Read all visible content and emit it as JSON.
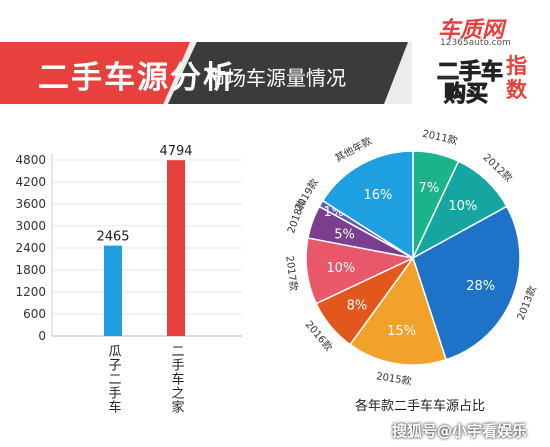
{
  "header": {
    "title": "二手车源分析",
    "subtitle": "市场车源量情况",
    "logo_top": "车质网",
    "logo_url": "12365auto.com",
    "logo_line1": "二手车",
    "logo_line2": "购买",
    "logo_side": "指数"
  },
  "watermark": "搜狐号@小宇看娱乐",
  "colors": {
    "banner_red": "#e8403c",
    "banner_dark": "#3b3b3b",
    "bar_blue": "#1ea0e0",
    "bar_red": "#e8403c"
  },
  "chart_data": [
    {
      "type": "bar",
      "categories": [
        "瓜子二手车",
        "二手车之家"
      ],
      "values": [
        2465,
        4794
      ],
      "data_labels": [
        "2465",
        "4794"
      ],
      "colors": [
        "#1ea0e0",
        "#e8403c"
      ],
      "ylim": [
        0,
        4800
      ],
      "yticks": [
        "0",
        "600",
        "1200",
        "1800",
        "2400",
        "3000",
        "3600",
        "4200",
        "4800"
      ],
      "grid": true,
      "legend": "none"
    },
    {
      "type": "pie",
      "title": "各年款二手车车源占比",
      "slices": [
        {
          "label": "2011款",
          "value": 7,
          "text": "7%",
          "color": "#1ab38a"
        },
        {
          "label": "2012款",
          "value": 10,
          "text": "10%",
          "color": "#16a6a1"
        },
        {
          "label": "2013款",
          "value": 28,
          "text": "28%",
          "color": "#1e73c8"
        },
        {
          "label": "2015款",
          "value": 15,
          "text": "15%",
          "color": "#f2a12a"
        },
        {
          "label": "2016款",
          "value": 8,
          "text": "8%",
          "color": "#e2571c"
        },
        {
          "label": "2017款",
          "value": 10,
          "text": "10%",
          "color": "#e8576a"
        },
        {
          "label": "2018款",
          "value": 5,
          "text": "5%",
          "color": "#7a3e8e"
        },
        {
          "label": "2019款",
          "value": 1,
          "text": "1%",
          "color": "#5a5fb0"
        },
        {
          "label": "其他年款",
          "value": 16,
          "text": "16%",
          "color": "#1ea0e0"
        }
      ],
      "legend": "none"
    }
  ]
}
